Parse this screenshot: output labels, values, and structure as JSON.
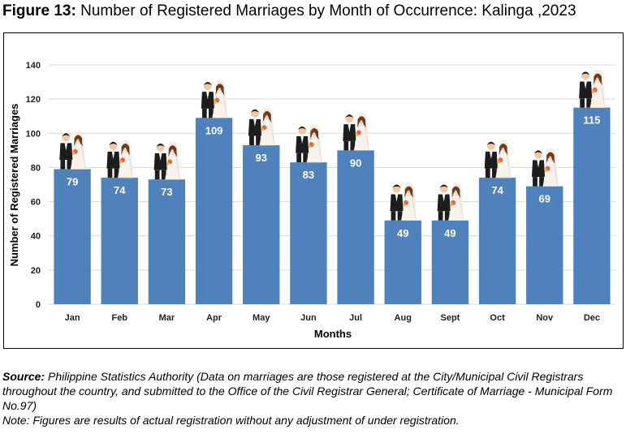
{
  "title": {
    "prefix": "Figure 13:",
    "text": "Number of Registered Marriages by Month of Occurrence: Kalinga ,2023"
  },
  "source": {
    "label": "Source:",
    "text": " Philippine Statistics Authority (Data on marriages are those registered at the City/Municipal Civil Registrars throughout the country, and submitted to the Office of the Civil Registrar General; Certificate of Marriage - Municipal Form No.97)",
    "note": "Note: Figures are results of actual registration without any adjustment of under registration."
  },
  "colors": {
    "bar": "#4F81BD",
    "grid": "#d9d9d9"
  },
  "icons": {
    "bar_top": "bride-and-groom-icon"
  },
  "chart_data": {
    "type": "bar",
    "categories": [
      "Jan",
      "Feb",
      "Mar",
      "Apr",
      "May",
      "Jun",
      "Jul",
      "Aug",
      "Sept",
      "Oct",
      "Nov",
      "Dec"
    ],
    "values": [
      79,
      74,
      73,
      109,
      93,
      83,
      90,
      49,
      49,
      74,
      69,
      115
    ],
    "xlabel": "Months",
    "ylabel": "Number of Registered Marriages",
    "ylim": [
      0,
      140
    ],
    "yticks": [
      0,
      20,
      40,
      60,
      80,
      100,
      120,
      140
    ],
    "grid": true,
    "data_labels": true
  }
}
